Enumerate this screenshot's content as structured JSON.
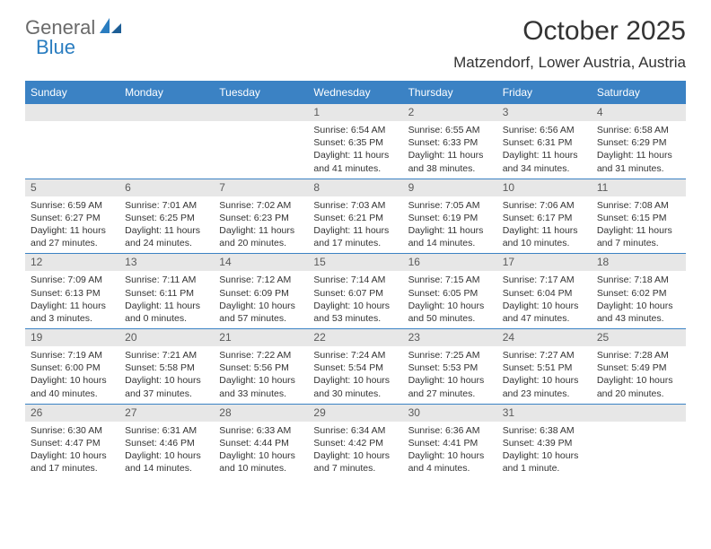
{
  "logo": {
    "text1": "General",
    "text2": "Blue"
  },
  "title": "October 2025",
  "location": "Matzendorf, Lower Austria, Austria",
  "colors": {
    "header_blue": "#3b82c4",
    "logo_gray": "#6a6a6a",
    "logo_blue": "#2a7dc0",
    "strip_gray": "#e7e7e7",
    "text": "#333333",
    "bg": "#ffffff"
  },
  "weekdays": [
    "Sunday",
    "Monday",
    "Tuesday",
    "Wednesday",
    "Thursday",
    "Friday",
    "Saturday"
  ],
  "grid": {
    "columns": 7,
    "start_weekday_index": 3,
    "rows": 5
  },
  "days": [
    {
      "n": 1,
      "sunrise": "6:54 AM",
      "sunset": "6:35 PM",
      "daylight": "11 hours and 41 minutes."
    },
    {
      "n": 2,
      "sunrise": "6:55 AM",
      "sunset": "6:33 PM",
      "daylight": "11 hours and 38 minutes."
    },
    {
      "n": 3,
      "sunrise": "6:56 AM",
      "sunset": "6:31 PM",
      "daylight": "11 hours and 34 minutes."
    },
    {
      "n": 4,
      "sunrise": "6:58 AM",
      "sunset": "6:29 PM",
      "daylight": "11 hours and 31 minutes."
    },
    {
      "n": 5,
      "sunrise": "6:59 AM",
      "sunset": "6:27 PM",
      "daylight": "11 hours and 27 minutes."
    },
    {
      "n": 6,
      "sunrise": "7:01 AM",
      "sunset": "6:25 PM",
      "daylight": "11 hours and 24 minutes."
    },
    {
      "n": 7,
      "sunrise": "7:02 AM",
      "sunset": "6:23 PM",
      "daylight": "11 hours and 20 minutes."
    },
    {
      "n": 8,
      "sunrise": "7:03 AM",
      "sunset": "6:21 PM",
      "daylight": "11 hours and 17 minutes."
    },
    {
      "n": 9,
      "sunrise": "7:05 AM",
      "sunset": "6:19 PM",
      "daylight": "11 hours and 14 minutes."
    },
    {
      "n": 10,
      "sunrise": "7:06 AM",
      "sunset": "6:17 PM",
      "daylight": "11 hours and 10 minutes."
    },
    {
      "n": 11,
      "sunrise": "7:08 AM",
      "sunset": "6:15 PM",
      "daylight": "11 hours and 7 minutes."
    },
    {
      "n": 12,
      "sunrise": "7:09 AM",
      "sunset": "6:13 PM",
      "daylight": "11 hours and 3 minutes."
    },
    {
      "n": 13,
      "sunrise": "7:11 AM",
      "sunset": "6:11 PM",
      "daylight": "11 hours and 0 minutes."
    },
    {
      "n": 14,
      "sunrise": "7:12 AM",
      "sunset": "6:09 PM",
      "daylight": "10 hours and 57 minutes."
    },
    {
      "n": 15,
      "sunrise": "7:14 AM",
      "sunset": "6:07 PM",
      "daylight": "10 hours and 53 minutes."
    },
    {
      "n": 16,
      "sunrise": "7:15 AM",
      "sunset": "6:05 PM",
      "daylight": "10 hours and 50 minutes."
    },
    {
      "n": 17,
      "sunrise": "7:17 AM",
      "sunset": "6:04 PM",
      "daylight": "10 hours and 47 minutes."
    },
    {
      "n": 18,
      "sunrise": "7:18 AM",
      "sunset": "6:02 PM",
      "daylight": "10 hours and 43 minutes."
    },
    {
      "n": 19,
      "sunrise": "7:19 AM",
      "sunset": "6:00 PM",
      "daylight": "10 hours and 40 minutes."
    },
    {
      "n": 20,
      "sunrise": "7:21 AM",
      "sunset": "5:58 PM",
      "daylight": "10 hours and 37 minutes."
    },
    {
      "n": 21,
      "sunrise": "7:22 AM",
      "sunset": "5:56 PM",
      "daylight": "10 hours and 33 minutes."
    },
    {
      "n": 22,
      "sunrise": "7:24 AM",
      "sunset": "5:54 PM",
      "daylight": "10 hours and 30 minutes."
    },
    {
      "n": 23,
      "sunrise": "7:25 AM",
      "sunset": "5:53 PM",
      "daylight": "10 hours and 27 minutes."
    },
    {
      "n": 24,
      "sunrise": "7:27 AM",
      "sunset": "5:51 PM",
      "daylight": "10 hours and 23 minutes."
    },
    {
      "n": 25,
      "sunrise": "7:28 AM",
      "sunset": "5:49 PM",
      "daylight": "10 hours and 20 minutes."
    },
    {
      "n": 26,
      "sunrise": "6:30 AM",
      "sunset": "4:47 PM",
      "daylight": "10 hours and 17 minutes."
    },
    {
      "n": 27,
      "sunrise": "6:31 AM",
      "sunset": "4:46 PM",
      "daylight": "10 hours and 14 minutes."
    },
    {
      "n": 28,
      "sunrise": "6:33 AM",
      "sunset": "4:44 PM",
      "daylight": "10 hours and 10 minutes."
    },
    {
      "n": 29,
      "sunrise": "6:34 AM",
      "sunset": "4:42 PM",
      "daylight": "10 hours and 7 minutes."
    },
    {
      "n": 30,
      "sunrise": "6:36 AM",
      "sunset": "4:41 PM",
      "daylight": "10 hours and 4 minutes."
    },
    {
      "n": 31,
      "sunrise": "6:38 AM",
      "sunset": "4:39 PM",
      "daylight": "10 hours and 1 minute."
    }
  ],
  "labels": {
    "sunrise": "Sunrise:",
    "sunset": "Sunset:",
    "daylight": "Daylight:"
  },
  "typography": {
    "title_fontsize_pt": 22,
    "location_fontsize_pt": 13,
    "weekday_fontsize_pt": 9,
    "daynum_fontsize_pt": 9,
    "body_fontsize_pt": 8
  }
}
